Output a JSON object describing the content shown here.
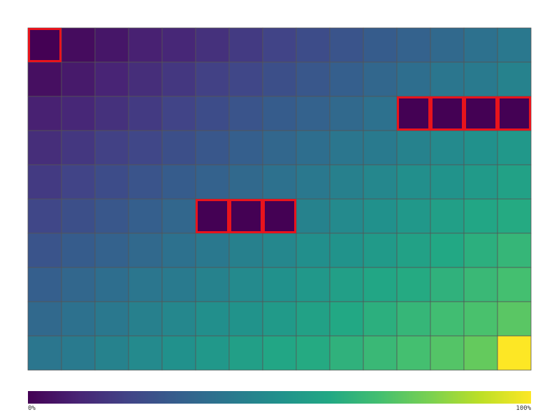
{
  "chart_data": {
    "type": "heatmap",
    "rows": 10,
    "cols": 15,
    "color_scale": "viridis",
    "value_range": [
      0,
      100
    ],
    "colorbar": {
      "min_label": "0%",
      "max_label": "100%"
    },
    "values": [
      [
        0,
        3,
        6,
        9,
        11,
        14,
        17,
        20,
        23,
        26,
        29,
        31,
        34,
        37,
        40
      ],
      [
        4,
        7,
        10,
        13,
        16,
        19,
        21,
        24,
        27,
        30,
        33,
        36,
        39,
        41,
        44
      ],
      [
        9,
        11,
        14,
        17,
        20,
        23,
        26,
        29,
        31,
        34,
        37,
        0,
        0,
        0,
        0
      ],
      [
        13,
        16,
        19,
        21,
        24,
        27,
        30,
        33,
        36,
        39,
        41,
        44,
        47,
        50,
        53
      ],
      [
        17,
        20,
        23,
        26,
        29,
        31,
        34,
        37,
        40,
        43,
        46,
        49,
        51,
        54,
        57
      ],
      [
        21,
        24,
        27,
        30,
        33,
        0,
        0,
        0,
        44,
        47,
        50,
        53,
        56,
        59,
        61
      ],
      [
        26,
        29,
        31,
        34,
        37,
        40,
        43,
        46,
        49,
        51,
        54,
        57,
        60,
        63,
        66
      ],
      [
        30,
        33,
        36,
        39,
        41,
        44,
        47,
        50,
        53,
        56,
        59,
        61,
        64,
        67,
        70
      ],
      [
        34,
        37,
        40,
        43,
        46,
        49,
        51,
        54,
        57,
        60,
        63,
        66,
        69,
        71,
        74
      ],
      [
        39,
        41,
        44,
        47,
        50,
        53,
        56,
        59,
        61,
        64,
        67,
        70,
        73,
        76,
        100
      ]
    ],
    "highlighted_cells": [
      [
        0,
        0
      ],
      [
        2,
        11
      ],
      [
        2,
        12
      ],
      [
        2,
        13
      ],
      [
        2,
        14
      ],
      [
        5,
        5
      ],
      [
        5,
        6
      ],
      [
        5,
        7
      ]
    ],
    "highlight_color": "#e8141c",
    "grid_color": "#555555"
  }
}
